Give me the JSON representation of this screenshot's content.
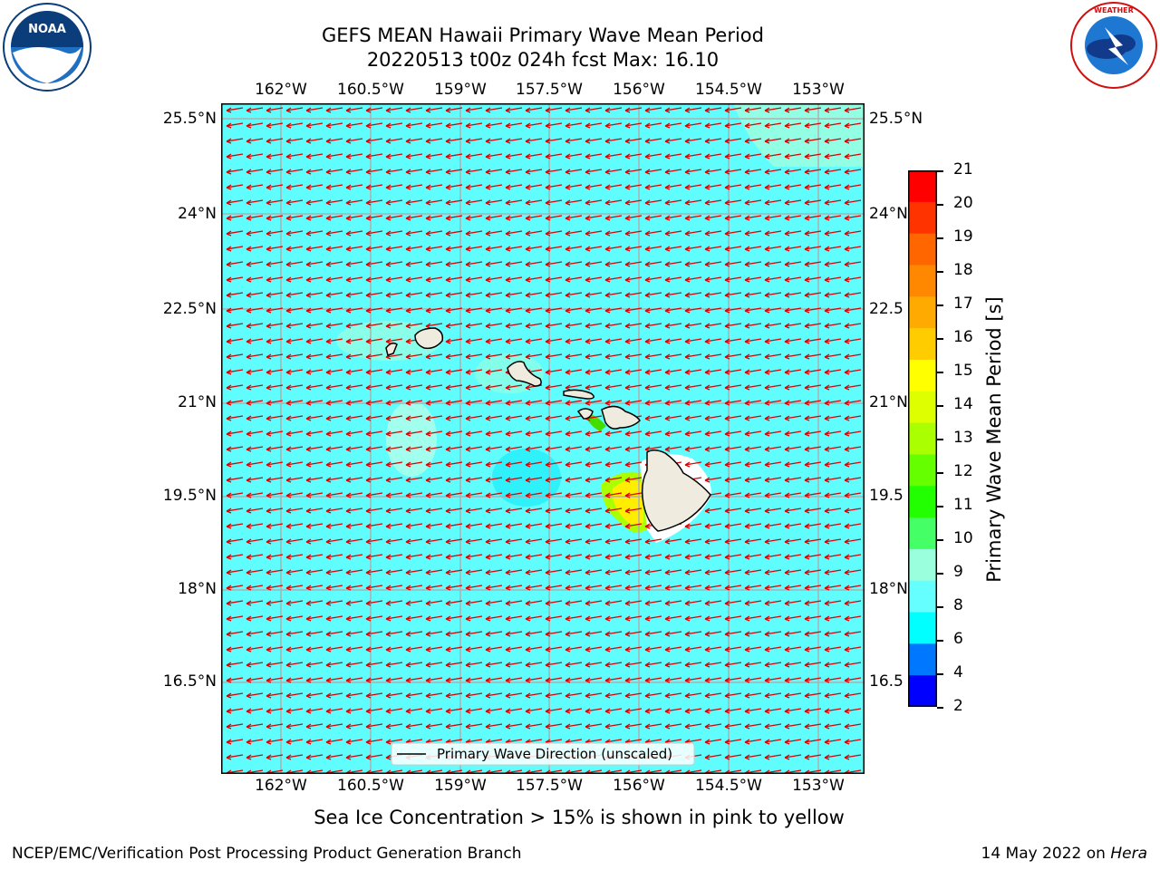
{
  "title": {
    "line1": "GEFS MEAN Hawaii Primary Wave Mean Period",
    "line2": "20220513 t00z 024h fcst   Max: 16.10"
  },
  "logos": {
    "left": "NOAA",
    "right": "NATIONAL WEATHER SERVICE"
  },
  "map": {
    "lon_labels": [
      "162°W",
      "160.5°W",
      "159°W",
      "157.5°W",
      "156°W",
      "154.5°W",
      "153°W"
    ],
    "lat_labels": [
      "25.5°N",
      "24°N",
      "22.5°N",
      "21°N",
      "19.5°N",
      "18°N",
      "16.5°N"
    ],
    "lat_labels_right": [
      "25.5°N",
      "24°N",
      "22.5",
      "21°N",
      "19.5",
      "18°N",
      "16.5"
    ],
    "legend": "Primary Wave Direction (unscaled)",
    "colors": {
      "ocean": "#5ffdfd",
      "land": "#efebdf",
      "arrow": "#e00000",
      "grid": "#b0b0b0"
    }
  },
  "colorbar": {
    "label": "Primary Wave Mean Period [s]",
    "ticks": [
      "21",
      "20",
      "19",
      "18",
      "17",
      "16",
      "15",
      "14",
      "13",
      "12",
      "11",
      "10",
      "9",
      "8",
      "6",
      "4",
      "2"
    ],
    "colors": [
      "#ff0000",
      "#ff3300",
      "#ff6600",
      "#ff8800",
      "#ffaa00",
      "#ffcc00",
      "#ffff00",
      "#ddff00",
      "#aaff00",
      "#66ff00",
      "#22ff00",
      "#44ff66",
      "#99ffdd",
      "#66ffff",
      "#00ffff",
      "#0077ff",
      "#0000ff"
    ]
  },
  "note": "Sea Ice Concentration > 15% is shown in pink to yellow",
  "footer": {
    "left": "NCEP/EMC/Verification Post Processing Product Generation Branch",
    "right_text": "14 May 2022 on ",
    "right_italic": "Hera"
  }
}
